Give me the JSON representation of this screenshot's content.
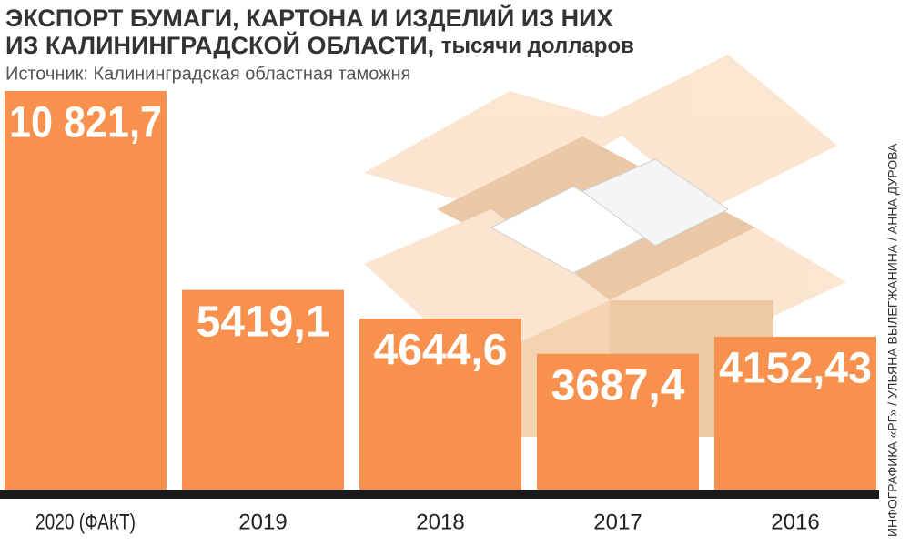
{
  "chart_data": {
    "type": "bar",
    "title_lines": [
      "ЭКСПОРТ БУМАГИ, КАРТОНА И ИЗДЕЛИЙ ИЗ НИХ",
      "ИЗ КАЛИНИНГРАДСКОЙ ОБЛАСТИ,"
    ],
    "unit": "тысячи долларов",
    "source": "Источник:  Калининградская областная таможня",
    "credit": "ИНФОГРАФИКА «РГ» / УЛЬЯНА ВЫЛЕГЖАНИНА / АННА ДУРОВА",
    "categories": [
      "2020 (ФАКТ)",
      "2019",
      "2018",
      "2017",
      "2016"
    ],
    "values": [
      10821.7,
      5419.1,
      4644.6,
      3687.4,
      4152.43
    ],
    "value_labels": [
      "10 821,7",
      "5419,1",
      "4644,6",
      "3687,4",
      "4152,43"
    ],
    "color": "#f7914d"
  }
}
